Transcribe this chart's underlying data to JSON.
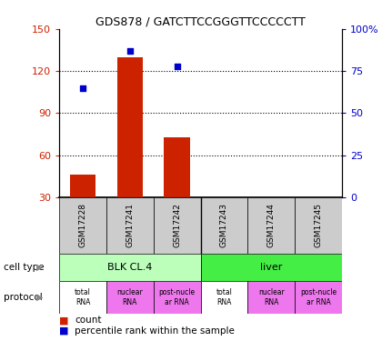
{
  "title": "GDS878 / GATCTTCCGGGTTCCCCCTT",
  "samples": [
    "GSM17228",
    "GSM17241",
    "GSM17242",
    "GSM17243",
    "GSM17244",
    "GSM17245"
  ],
  "counts": [
    46,
    130,
    73,
    30,
    30,
    30
  ],
  "baseline": 30,
  "percentiles": [
    65,
    87,
    78,
    null,
    null,
    null
  ],
  "ylim_left": [
    30,
    150
  ],
  "ylim_right": [
    0,
    100
  ],
  "yticks_left": [
    30,
    60,
    90,
    120,
    150
  ],
  "yticks_right": [
    0,
    25,
    50,
    75,
    100
  ],
  "yticklabels_right": [
    "0",
    "25",
    "50",
    "75",
    "100%"
  ],
  "bar_color": "#cc2200",
  "scatter_color": "#0000cc",
  "cell_types": [
    {
      "label": "BLK CL.4",
      "start": 0,
      "end": 3,
      "color": "#bbffbb"
    },
    {
      "label": "liver",
      "start": 3,
      "end": 6,
      "color": "#44ee44"
    }
  ],
  "protocols": [
    {
      "label": "total\nRNA",
      "col": 0,
      "color": "#ffffff"
    },
    {
      "label": "nuclear\nRNA",
      "col": 1,
      "color": "#ee77ee"
    },
    {
      "label": "post-nucle\nar RNA",
      "col": 2,
      "color": "#ee77ee"
    },
    {
      "label": "total\nRNA",
      "col": 3,
      "color": "#ffffff"
    },
    {
      "label": "nuclear\nRNA",
      "col": 4,
      "color": "#ee77ee"
    },
    {
      "label": "post-nucle\nar RNA",
      "col": 5,
      "color": "#ee77ee"
    }
  ],
  "legend_count_color": "#cc2200",
  "legend_percentile_color": "#0000cc",
  "left_label_color": "#cc2200",
  "right_label_color": "#0000cc",
  "sample_bg_color": "#cccccc",
  "grid_color": "#000000"
}
